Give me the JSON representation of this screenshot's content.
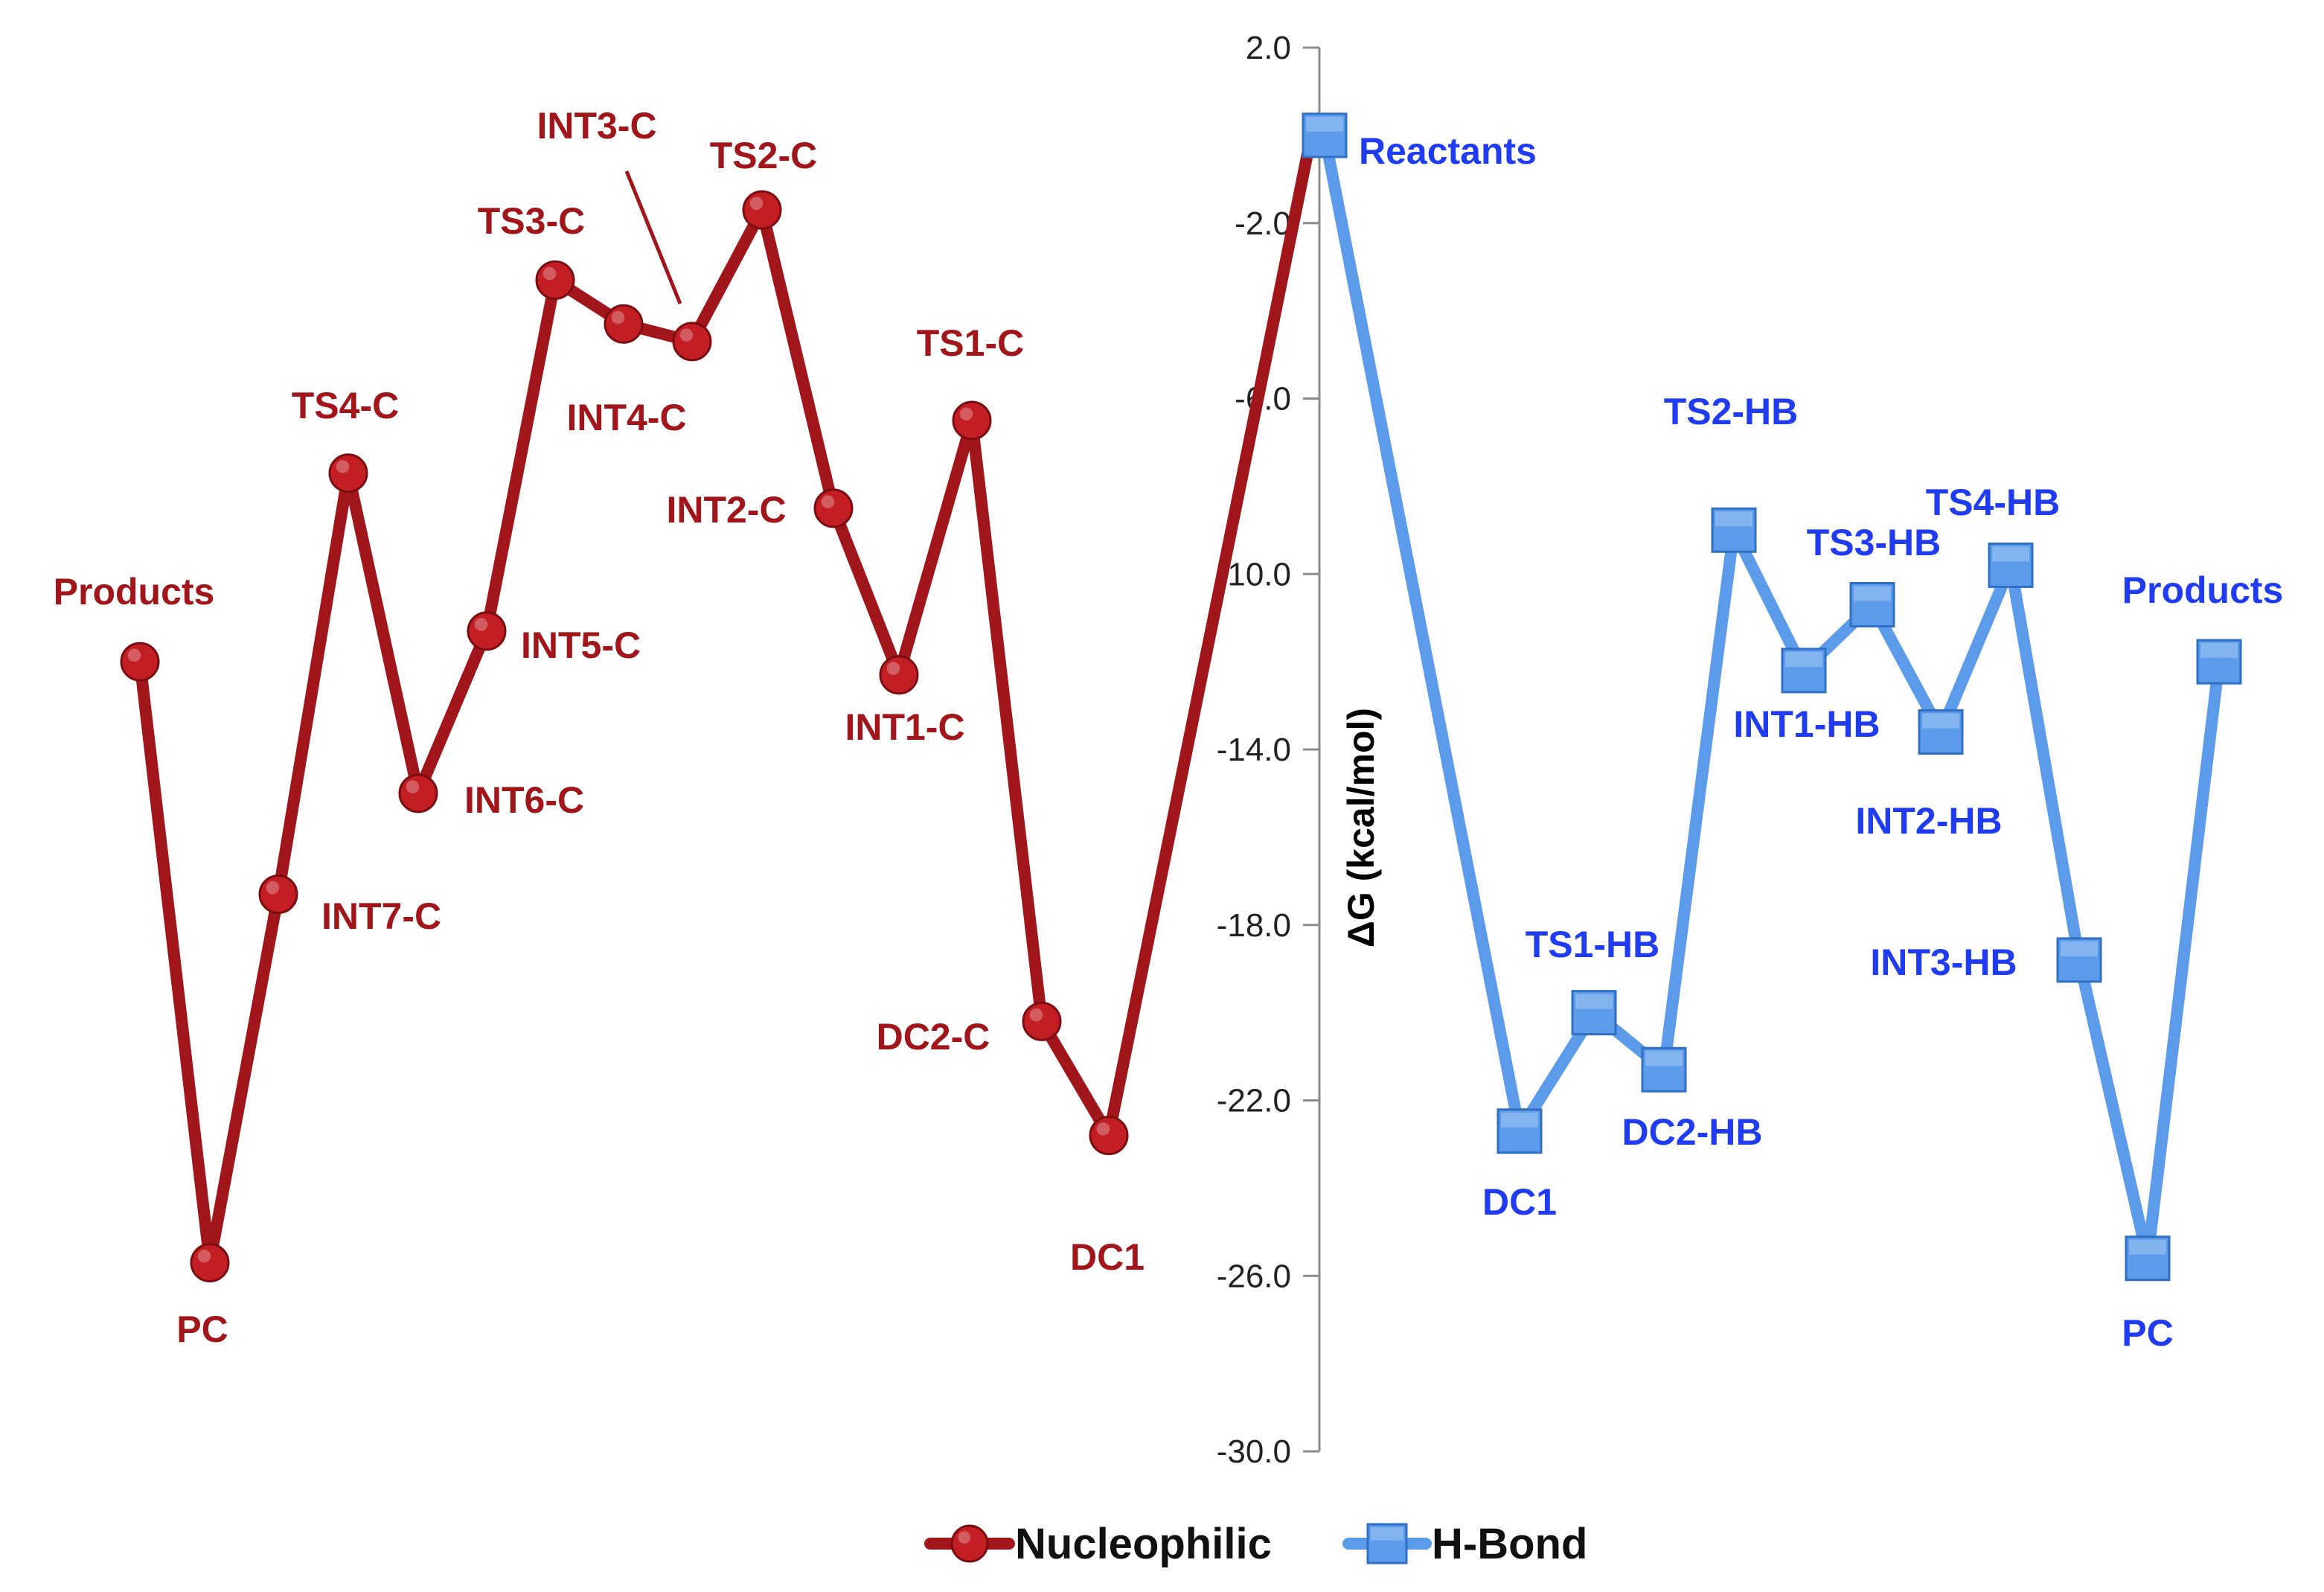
{
  "chart_data": {
    "type": "line",
    "ylabel": "ΔG (kcal/mol)",
    "ylim": [
      -30.0,
      2.0
    ],
    "yticks": [
      "2.0",
      "-2.0",
      "-6.0",
      "-10.0",
      "-14.0",
      "-18.0",
      "-22.0",
      "-26.0",
      "-30.0"
    ],
    "ytick_values": [
      2,
      -2,
      -6,
      -10,
      -14,
      -18,
      -22,
      -26,
      -30
    ],
    "grid": false,
    "legend_position": "bottom-center",
    "colors": {
      "nucleophilic": "#a0161b",
      "nucleophilic_marker": "#c21e24",
      "hbond": "#5b9bea",
      "hbond_label": "#1f3cf0",
      "axis": "#8c8c8c"
    },
    "series": [
      {
        "name": "Nucleophilic",
        "marker": "circle",
        "points": [
          {
            "label": "Products",
            "y": -12.0
          },
          {
            "label": "PC",
            "y": -25.7
          },
          {
            "label": "INT7-C",
            "y": -17.3
          },
          {
            "label": "TS4-C",
            "y": -7.7
          },
          {
            "label": "INT6-C",
            "y": -15.0
          },
          {
            "label": "INT5-C",
            "y": -11.3
          },
          {
            "label": "TS3-C",
            "y": -3.3
          },
          {
            "label": "INT4-C",
            "y": -4.3
          },
          {
            "label": "INT3-C",
            "y": -4.7
          },
          {
            "label": "TS2-C",
            "y": -1.7
          },
          {
            "label": "INT2-C",
            "y": -8.5
          },
          {
            "label": "INT1-C",
            "y": -12.3
          },
          {
            "label": "TS1-C",
            "y": -6.5
          },
          {
            "label": "DC2-C",
            "y": -20.2
          },
          {
            "label": "DC1",
            "y": -22.8
          },
          {
            "label": "",
            "y": 0.0
          }
        ]
      },
      {
        "name": "H-Bond",
        "marker": "square",
        "points": [
          {
            "label": "Reactants",
            "y": 0.0
          },
          {
            "label": "DC1",
            "y": -22.7
          },
          {
            "label": "TS1-HB",
            "y": -20.0
          },
          {
            "label": "DC2-HB",
            "y": -21.3
          },
          {
            "label": "TS2-HB",
            "y": -9.0
          },
          {
            "label": "INT1-HB",
            "y": -12.2
          },
          {
            "label": "TS3-HB",
            "y": -10.7
          },
          {
            "label": "INT2-HB",
            "y": -13.6
          },
          {
            "label": "TS4-HB",
            "y": -9.8
          },
          {
            "label": "INT3-HB",
            "y": -18.8
          },
          {
            "label": "PC",
            "y": -25.6
          },
          {
            "label": "Products",
            "y": -12.0
          }
        ]
      }
    ]
  }
}
